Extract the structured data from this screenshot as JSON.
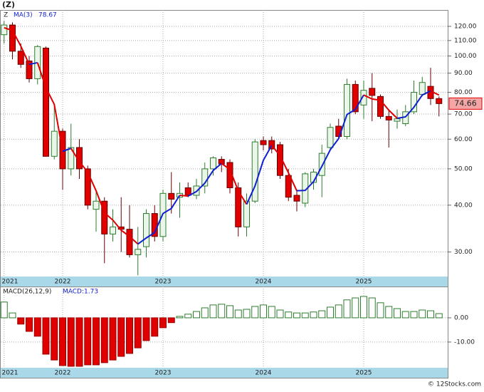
{
  "chart_data": [
    {
      "type": "candlestick",
      "title": "(Z)",
      "ticker": "Z",
      "categories": [
        "2021",
        null,
        null,
        null,
        null,
        null,
        null,
        "2022",
        null,
        null,
        null,
        null,
        null,
        null,
        null,
        null,
        null,
        null,
        null,
        "2023",
        null,
        null,
        null,
        null,
        null,
        null,
        null,
        null,
        null,
        null,
        null,
        "2024",
        null,
        null,
        null,
        null,
        null,
        null,
        null,
        null,
        null,
        null,
        null,
        "2025",
        null,
        null,
        null,
        null,
        null,
        null,
        null,
        null,
        null
      ],
      "open": [
        114,
        121,
        103,
        97,
        87,
        105,
        54,
        63,
        50,
        57,
        50,
        39,
        41,
        33.5,
        35,
        34.5,
        29.5,
        31,
        38,
        33,
        43,
        42,
        44.5,
        42.5,
        45,
        50,
        53,
        52,
        44.5,
        35,
        41,
        59.5,
        59.5,
        58,
        48,
        42.5,
        40.5,
        46,
        48,
        57,
        65,
        61,
        84,
        74,
        82,
        78,
        69,
        67,
        66,
        71,
        79,
        83,
        77
      ],
      "high": [
        124,
        123,
        108,
        100,
        107,
        106,
        74,
        64,
        66,
        60,
        51,
        44,
        42,
        39,
        42,
        40,
        35,
        39,
        40,
        44,
        49,
        46,
        46,
        47,
        52,
        54,
        54,
        53,
        46,
        43,
        60,
        61,
        61,
        59,
        50,
        44,
        49,
        50,
        58,
        66,
        68,
        87,
        86,
        86,
        90,
        79,
        72,
        72,
        74,
        86,
        88,
        93,
        78
      ],
      "low": [
        108,
        98,
        93,
        85,
        84,
        55,
        53,
        44,
        48,
        47,
        39,
        34,
        28,
        32,
        30,
        29,
        26,
        29,
        32,
        32,
        38,
        37,
        42,
        41.5,
        43,
        48,
        49,
        43,
        33,
        33,
        40.5,
        56,
        55,
        47,
        41,
        38.5,
        39.5,
        44,
        42,
        56,
        60,
        60,
        70,
        68,
        67,
        68,
        57,
        64,
        65,
        70,
        78,
        74,
        69
      ],
      "close": [
        121,
        103,
        95,
        87,
        106,
        54,
        63,
        50,
        57,
        50,
        40,
        41,
        33.5,
        35,
        34.5,
        29.5,
        30.5,
        38,
        33,
        43,
        41.5,
        43,
        42.5,
        45,
        50,
        53.5,
        51.5,
        44.5,
        35,
        41,
        59,
        58,
        56.5,
        48,
        42,
        41,
        48.5,
        49,
        55,
        64.5,
        61,
        84,
        71,
        81,
        78.5,
        69,
        67.5,
        68,
        71,
        80,
        85,
        77,
        74.66
      ],
      "up_color": "#2e7d2e",
      "down_color": "#e00000",
      "series": [
        {
          "name": "MA(3)",
          "color": "#1020d0",
          "down_color": "#e00000",
          "values": [
            119,
            117,
            106.3,
            95,
            96,
            82.3,
            74.3,
            55.7,
            56.7,
            52.3,
            49,
            43.7,
            38.2,
            36.5,
            34.3,
            33,
            31.5,
            32.7,
            33.8,
            38,
            39.2,
            42.5,
            42.3,
            43.5,
            45.8,
            49.5,
            51.7,
            49.8,
            43.7,
            40.2,
            45,
            52.7,
            57.8,
            54.2,
            48.8,
            43.7,
            43.8,
            46.2,
            50.8,
            56.2,
            60.2,
            69.8,
            72,
            78.7,
            76.8,
            76.2,
            71.7,
            68.2,
            68.8,
            73,
            78.7,
            80.7,
            78.67
          ]
        }
      ],
      "ylim": [
        25.8,
        132.7
      ],
      "log_scale": true,
      "grid": true,
      "yticks": [
        {
          "value": 30,
          "label": "30.00"
        },
        {
          "value": 40,
          "label": "40.00"
        },
        {
          "value": 50,
          "label": "50.00"
        },
        {
          "value": 60,
          "label": "60.00"
        },
        {
          "value": 70,
          "label": "70.00"
        },
        {
          "value": 80,
          "label": "80.00"
        },
        {
          "value": 90,
          "label": "90.00"
        },
        {
          "value": 100,
          "label": "100.00"
        },
        {
          "value": 110,
          "label": "110.00"
        },
        {
          "value": 120,
          "label": "120.00"
        }
      ],
      "footer": "© 12Stocks.com"
    },
    {
      "type": "bar",
      "title": "MACD(26,12,9)",
      "legend": "MACD:1.73",
      "categories": [
        "2021",
        null,
        null,
        null,
        null,
        null,
        null,
        "2022",
        null,
        null,
        null,
        null,
        null,
        null,
        null,
        null,
        null,
        null,
        null,
        "2023",
        null,
        null,
        null,
        null,
        null,
        null,
        null,
        null,
        null,
        null,
        null,
        "2024",
        null,
        null,
        null,
        null,
        null,
        null,
        null,
        null,
        null,
        null,
        null,
        "2025",
        null,
        null,
        null,
        null,
        null,
        null,
        null,
        null,
        null
      ],
      "values": [
        6.5,
        2,
        -2.6,
        -5.6,
        -7.6,
        -15,
        -17.4,
        -19.7,
        -20,
        -20,
        -19.4,
        -19.4,
        -18.5,
        -17.4,
        -15.9,
        -14.7,
        -12.4,
        -9.4,
        -7.6,
        -4.1,
        -2,
        0.6,
        1.5,
        2.6,
        4.1,
        5.3,
        5.6,
        5,
        3.2,
        3.5,
        4.7,
        5.3,
        4.7,
        3.2,
        2.4,
        2,
        2,
        2.4,
        2.9,
        4.4,
        5.3,
        7.4,
        8.2,
        8.8,
        8.2,
        6.2,
        4.7,
        3.8,
        2.6,
        2.6,
        3.2,
        2.9,
        1.73
      ],
      "up_color": "#2e7d2e",
      "down_color": "#e00000",
      "ylim": [
        -20.6,
        12.9
      ],
      "grid": true,
      "yticks": [
        {
          "value": 0,
          "label": "0.00"
        },
        {
          "value": -10,
          "label": "-10.00"
        }
      ]
    }
  ]
}
